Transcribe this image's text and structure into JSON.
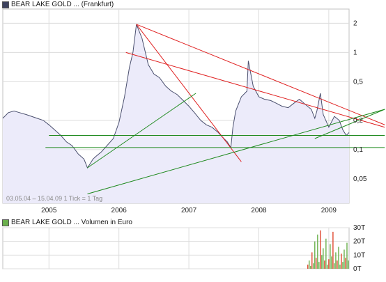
{
  "header": {
    "price_legend": "BEAR LAKE GOLD ... (Frankfurt)",
    "volume_legend": "BEAR LAKE GOLD ... Volumen in Euro",
    "info_label": "03.05.04 – 15.04.09   1 Tick = 1 Tag"
  },
  "colors": {
    "price_line": "#4a4f6e",
    "price_fill": "#ecebfa",
    "grid": "#dcdcdc",
    "panel_bg": "#ffffff",
    "trend_red": "#e02020",
    "trend_green": "#1f8a1f",
    "volume_green": "#6ab04c",
    "volume_red": "#e0482f"
  },
  "chart_data": [
    {
      "type": "line",
      "title": "BEAR LAKE GOLD ... (Frankfurt)",
      "y_scale": "log",
      "ylim": [
        0.028,
        2.8
      ],
      "y_ticks": [
        0.05,
        0.1,
        0.2,
        0.5,
        1,
        2
      ],
      "y_tick_labels": [
        "0,05",
        "0,1",
        "0,2",
        "0,5",
        "1",
        "2"
      ],
      "x_tick_labels": [
        "2005",
        "2006",
        "2007",
        "2008",
        "2009"
      ],
      "x_ticks": [
        2005.0,
        2006.0,
        2007.0,
        2008.0,
        2009.0
      ],
      "xlim": [
        2004.34,
        2009.29
      ],
      "grid": true,
      "series": [
        {
          "name": "BEAR LAKE GOLD ... (Frankfurt)",
          "x": [
            2004.34,
            2004.42,
            2004.5,
            2004.58,
            2004.67,
            2004.75,
            2004.83,
            2004.92,
            2005.0,
            2005.08,
            2005.17,
            2005.25,
            2005.33,
            2005.42,
            2005.5,
            2005.55,
            2005.58,
            2005.63,
            2005.67,
            2005.75,
            2005.83,
            2005.92,
            2006.0,
            2006.08,
            2006.15,
            2006.2,
            2006.25,
            2006.33,
            2006.42,
            2006.5,
            2006.58,
            2006.67,
            2006.75,
            2006.83,
            2006.92,
            2007.0,
            2007.08,
            2007.17,
            2007.25,
            2007.33,
            2007.42,
            2007.5,
            2007.55,
            2007.6,
            2007.63,
            2007.67,
            2007.75,
            2007.83,
            2007.85,
            2007.92,
            2008.0,
            2008.08,
            2008.17,
            2008.25,
            2008.33,
            2008.42,
            2008.5,
            2008.58,
            2008.67,
            2008.75,
            2008.8,
            2008.83,
            2008.88,
            2008.92,
            2009.0,
            2009.08,
            2009.15,
            2009.2,
            2009.25,
            2009.29
          ],
          "y": [
            0.21,
            0.24,
            0.25,
            0.24,
            0.23,
            0.22,
            0.21,
            0.2,
            0.18,
            0.16,
            0.14,
            0.12,
            0.11,
            0.09,
            0.08,
            0.065,
            0.07,
            0.08,
            0.085,
            0.095,
            0.11,
            0.13,
            0.19,
            0.35,
            0.7,
            1.0,
            1.95,
            1.4,
            0.75,
            0.6,
            0.55,
            0.45,
            0.4,
            0.37,
            0.32,
            0.28,
            0.24,
            0.2,
            0.18,
            0.17,
            0.15,
            0.13,
            0.12,
            0.105,
            0.17,
            0.25,
            0.35,
            0.4,
            0.82,
            0.45,
            0.35,
            0.33,
            0.32,
            0.3,
            0.28,
            0.27,
            0.3,
            0.33,
            0.29,
            0.26,
            0.21,
            0.25,
            0.38,
            0.23,
            0.17,
            0.22,
            0.2,
            0.16,
            0.14,
            0.15
          ]
        }
      ]
    },
    {
      "type": "bar",
      "title": "BEAR LAKE GOLD ... Volumen in Euro",
      "y_tick_labels": [
        "0T",
        "10T",
        "20T",
        "30T"
      ],
      "y_ticks": [
        0,
        10,
        20,
        30
      ],
      "ylim": [
        0,
        30
      ],
      "unit": "T",
      "series": [
        {
          "name": "Volumen in Euro",
          "x": [
            2008.7,
            2008.72,
            2008.74,
            2008.76,
            2008.78,
            2008.8,
            2008.82,
            2008.84,
            2008.86,
            2008.88,
            2008.9,
            2008.92,
            2008.94,
            2008.96,
            2008.98,
            2009.0,
            2009.02,
            2009.04,
            2009.06,
            2009.08,
            2009.1,
            2009.12,
            2009.14,
            2009.16,
            2009.18,
            2009.2,
            2009.22,
            2009.24,
            2009.26,
            2009.28
          ],
          "values": [
            3,
            6,
            2,
            12,
            4,
            20,
            8,
            25,
            5,
            28,
            10,
            15,
            6,
            22,
            3,
            7,
            18,
            9,
            27,
            4,
            12,
            6,
            16,
            3,
            11,
            5,
            14,
            8,
            19,
            6
          ]
        }
      ]
    }
  ],
  "trendlines": [
    {
      "color": "red",
      "x": [
        2006.25,
        2009.8
      ],
      "y": [
        1.95,
        0.18
      ]
    },
    {
      "color": "red",
      "x": [
        2006.1,
        2009.8
      ],
      "y": [
        1.0,
        0.17
      ]
    },
    {
      "color": "red",
      "x": [
        2006.25,
        2007.75
      ],
      "y": [
        1.95,
        0.075
      ]
    },
    {
      "color": "green",
      "x": [
        2005.55,
        2009.8
      ],
      "y": [
        0.035,
        0.26
      ]
    },
    {
      "color": "green",
      "x": [
        2005.55,
        2007.1
      ],
      "y": [
        0.065,
        0.38
      ]
    },
    {
      "color": "green",
      "x": [
        2008.8,
        2009.8
      ],
      "y": [
        0.13,
        0.26
      ]
    },
    {
      "color": "green",
      "x": [
        2005.0,
        2009.8
      ],
      "y": [
        0.14,
        0.14
      ]
    },
    {
      "color": "green",
      "x": [
        2004.95,
        2009.8
      ],
      "y": [
        0.105,
        0.105
      ]
    }
  ]
}
